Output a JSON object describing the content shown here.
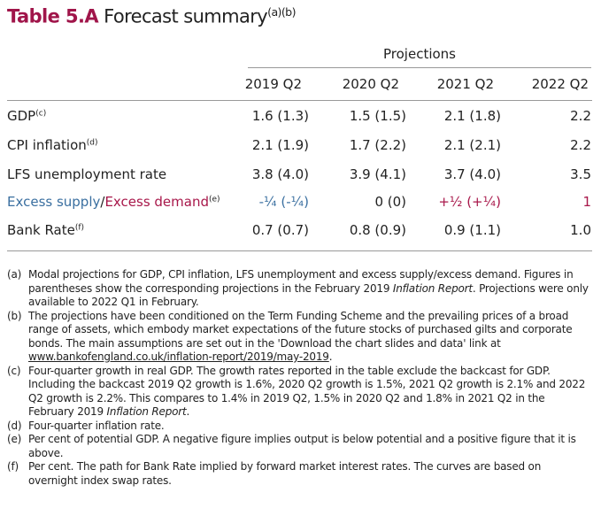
{
  "title": {
    "number": "Table 5.A",
    "text": "Forecast summary",
    "sup": "(a)(b)"
  },
  "projections_label": "Projections",
  "columns": [
    "2019 Q2",
    "2020 Q2",
    "2021 Q2",
    "2022 Q2"
  ],
  "rows": [
    {
      "label": "GDP",
      "sup": "(c)",
      "values": [
        "1.6 (1.3)",
        "1.5 (1.5)",
        "2.1 (1.8)",
        "2.2"
      ]
    },
    {
      "label": "CPI inflation",
      "sup": "(d)",
      "values": [
        "2.1 (1.9)",
        "1.7 (2.2)",
        "2.1 (2.1)",
        "2.2"
      ]
    },
    {
      "label": "LFS unemployment rate",
      "sup": "",
      "values": [
        "3.8 (4.0)",
        "3.9 (4.1)",
        "3.7 (4.0)",
        "3.5"
      ]
    },
    {
      "label_a": "Excess supply",
      "sep": "/",
      "label_b": "Excess demand",
      "sup": "(e)",
      "values": [
        "-¼ (-¼)",
        "0 (0)",
        "+½ (+¼)",
        "1"
      ]
    },
    {
      "label": "Bank Rate",
      "sup": "(f)",
      "values": [
        "0.7 (0.7)",
        "0.8 (0.9)",
        "0.9 (1.1)",
        "1.0"
      ]
    }
  ],
  "colors": {
    "title": "#a0154a",
    "supply": "#3a6fa0",
    "demand": "#a8174a"
  },
  "notes": [
    {
      "key": "(a)",
      "text": "Modal projections for GDP, CPI inflation, LFS unemployment and excess supply/excess demand. Figures in parentheses show the corresponding projections in the February 2019 ",
      "italic": "Inflation Report",
      "after": ". Projections were only available to 2022 Q1 in February."
    },
    {
      "key": "(b)",
      "text": "The projections have been conditioned on the Term Funding Scheme and the prevailing prices of a broad range of assets, which embody market expectations of the future stocks of purchased gilts and corporate bonds. The main assumptions are set out in the 'Download the chart slides and data' link at ",
      "link": "www.bankofengland.co.uk/inflation-report/2019/may-2019",
      "after": "."
    },
    {
      "key": "(c)",
      "text": "Four-quarter growth in real GDP. The growth rates reported in the table exclude the backcast for GDP. Including the backcast 2019 Q2 growth is 1.6%, 2020 Q2 growth is 1.5%, 2021 Q2 growth is 2.1% and 2022 Q2 growth is 2.2%. This compares to 1.4% in 2019 Q2, 1.5% in 2020 Q2 and 1.8% in 2021 Q2 in the February 2019 ",
      "italic": "Inflation Report",
      "after": "."
    },
    {
      "key": "(d)",
      "text": "Four-quarter inflation rate."
    },
    {
      "key": "(e)",
      "text": "Per cent of potential GDP. A negative figure implies output is below potential and a positive figure that it is above."
    },
    {
      "key": "(f)",
      "text": "Per cent. The path for Bank Rate implied by forward market interest rates. The curves are based on overnight index swap rates."
    }
  ]
}
